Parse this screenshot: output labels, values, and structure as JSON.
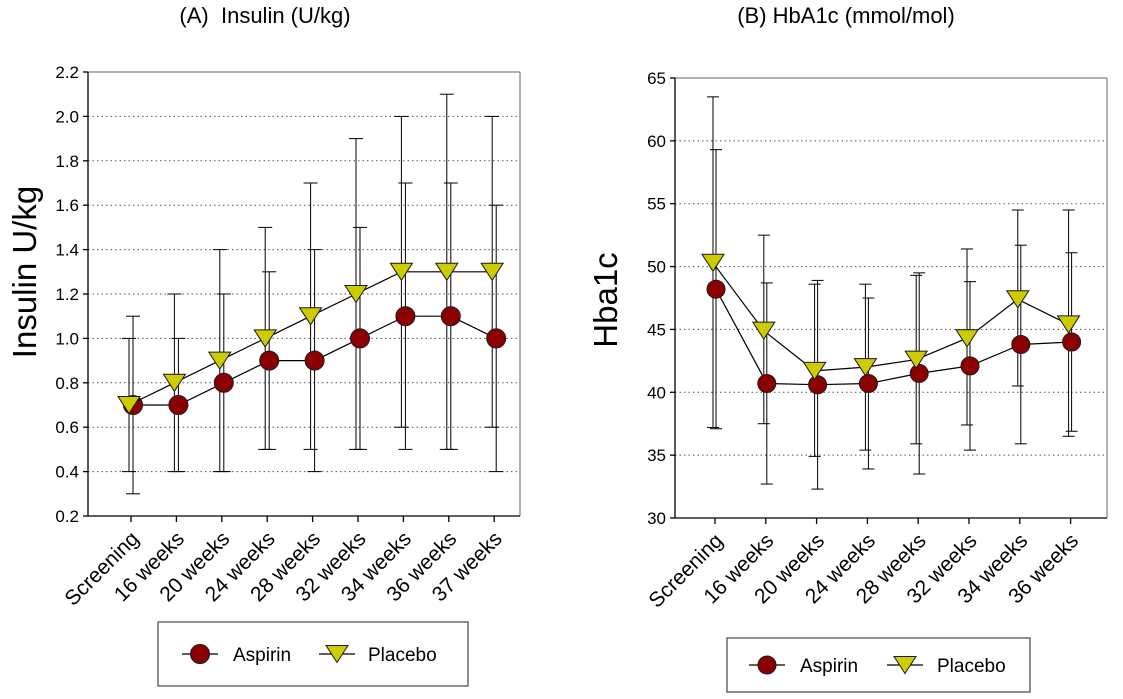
{
  "chart_data": [
    {
      "type": "line",
      "title": "(A)  Insulin (U/kg)",
      "ylabel": "Insulin U/kg",
      "ylim": [
        0.2,
        2.2
      ],
      "yticks": [
        "0.2",
        "0.4",
        "0.6",
        "0.8",
        "1.0",
        "1.2",
        "1.4",
        "1.6",
        "1.8",
        "2.0",
        "2.2"
      ],
      "grid": true,
      "legend": "bottom",
      "categories": [
        "Screening",
        "16 weeks",
        "20 weeks",
        "24 weeks",
        "28 weeks",
        "32 weeks",
        "34 weeks",
        "36 weeks",
        "37 weeks"
      ],
      "series": [
        {
          "name": "Aspirin",
          "marker": "circle",
          "color": "#8b0000",
          "values": [
            0.7,
            0.7,
            0.8,
            0.9,
            0.9,
            1.0,
            1.1,
            1.1,
            1.0
          ],
          "error_low": [
            0.3,
            0.4,
            0.4,
            0.5,
            0.4,
            0.5,
            0.5,
            0.5,
            0.4
          ],
          "error_high": [
            1.1,
            1.0,
            1.2,
            1.3,
            1.4,
            1.5,
            1.7,
            1.7,
            1.6
          ]
        },
        {
          "name": "Placebo",
          "marker": "triangle-down",
          "color": "#cccc00",
          "values": [
            0.7,
            0.8,
            0.9,
            1.0,
            1.1,
            1.2,
            1.3,
            1.3,
            1.3
          ],
          "error_low": [
            0.4,
            0.4,
            0.4,
            0.5,
            0.5,
            0.5,
            0.6,
            0.5,
            0.6
          ],
          "error_high": [
            1.0,
            1.2,
            1.4,
            1.5,
            1.7,
            1.9,
            2.0,
            2.1,
            2.0
          ]
        }
      ]
    },
    {
      "type": "line",
      "title": "(B) HbA1c (mmol/mol)",
      "ylabel": "Hba1c",
      "ylim": [
        30,
        65
      ],
      "yticks": [
        "30",
        "35",
        "40",
        "45",
        "50",
        "55",
        "60",
        "65"
      ],
      "grid": true,
      "legend": "bottom",
      "categories": [
        "Screening",
        "16 weeks",
        "20 weeks",
        "24 weeks",
        "28 weeks",
        "32 weeks",
        "34 weeks",
        "36 weeks"
      ],
      "series": [
        {
          "name": "Aspirin",
          "marker": "circle",
          "color": "#8b0000",
          "values": [
            48.2,
            40.7,
            40.6,
            40.7,
            41.5,
            42.1,
            43.8,
            44.0
          ],
          "error_low": [
            37.1,
            32.7,
            32.3,
            33.9,
            33.5,
            35.4,
            35.9,
            36.9
          ],
          "error_high": [
            59.3,
            48.7,
            48.9,
            47.5,
            49.5,
            48.8,
            51.7,
            51.1
          ]
        },
        {
          "name": "Placebo",
          "marker": "triangle-down",
          "color": "#cccc00",
          "values": [
            50.3,
            44.9,
            41.7,
            42.0,
            42.6,
            44.3,
            47.4,
            45.4
          ],
          "error_low": [
            37.2,
            37.5,
            34.9,
            35.4,
            35.9,
            37.4,
            40.5,
            36.5
          ],
          "error_high": [
            63.5,
            52.5,
            48.6,
            48.6,
            49.3,
            51.4,
            54.5,
            54.5
          ]
        }
      ]
    }
  ]
}
